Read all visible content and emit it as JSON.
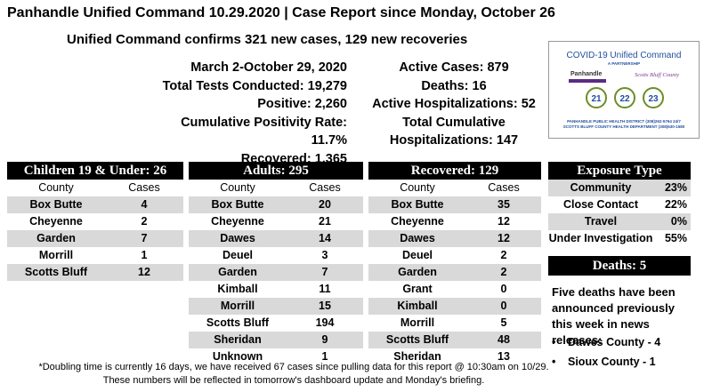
{
  "header": {
    "title": "Panhandle Unified Command 10.29.2020 | Case Report since Monday, October 26",
    "subtitle": "Unified Command confirms 321 new cases, 129 new recoveries"
  },
  "stats_left": [
    "March 2-October 29, 2020",
    "Total Tests Conducted: 19,279",
    "Positive: 2,260",
    "Cumulative Positivity Rate: 11.7%",
    "Recovered: 1,365"
  ],
  "stats_right": [
    "Active Cases: 879",
    "Deaths: 16",
    "Active Hospitalizations: 52",
    "Total Cumulative",
    "Hospitalizations: 147"
  ],
  "logo": {
    "title": "COVID-19 Unified Command",
    "subtitle": "A PARTNERSHIP",
    "phd": "Panhandle",
    "scb": "Scotts Bluff County",
    "numbers": [
      "21",
      "22",
      "23"
    ],
    "footer_1": "PANHANDLE PUBLIC HEALTH DISTRICT (308)262-5764 24/7",
    "footer_2": "SCOTTS BLUFF COUNTY HEALTH DEPARTMENT (308)630-1580"
  },
  "children": {
    "heading": "Children 19 & Under: 26",
    "col_county": "County",
    "col_cases": "Cases",
    "rows": [
      {
        "county": "Box Butte",
        "cases": "4"
      },
      {
        "county": "Cheyenne",
        "cases": "2"
      },
      {
        "county": "Garden",
        "cases": "7"
      },
      {
        "county": "Morrill",
        "cases": "1"
      },
      {
        "county": "Scotts Bluff",
        "cases": "12"
      }
    ]
  },
  "adults": {
    "heading": "Adults: 295",
    "col_county": "County",
    "col_cases": "Cases",
    "rows": [
      {
        "county": "Box Butte",
        "cases": "20"
      },
      {
        "county": "Cheyenne",
        "cases": "21"
      },
      {
        "county": "Dawes",
        "cases": "14"
      },
      {
        "county": "Deuel",
        "cases": "3"
      },
      {
        "county": "Garden",
        "cases": "7"
      },
      {
        "county": "Kimball",
        "cases": "11"
      },
      {
        "county": "Morrill",
        "cases": "15"
      },
      {
        "county": "Scotts Bluff",
        "cases": "194"
      },
      {
        "county": "Sheridan",
        "cases": "9"
      },
      {
        "county": "Unknown",
        "cases": "1"
      }
    ]
  },
  "recovered": {
    "heading": "Recovered: 129",
    "col_county": "County",
    "col_cases": "Cases",
    "rows": [
      {
        "county": "Box Butte",
        "cases": "35"
      },
      {
        "county": "Cheyenne",
        "cases": "12"
      },
      {
        "county": "Dawes",
        "cases": "12"
      },
      {
        "county": "Deuel",
        "cases": "2"
      },
      {
        "county": "Garden",
        "cases": "2"
      },
      {
        "county": "Grant",
        "cases": "0"
      },
      {
        "county": "Kimball",
        "cases": "0"
      },
      {
        "county": "Morrill",
        "cases": "5"
      },
      {
        "county": "Scotts Bluff",
        "cases": "48"
      },
      {
        "county": "Sheridan",
        "cases": "13"
      }
    ]
  },
  "exposure": {
    "heading": "Exposure Type",
    "rows": [
      {
        "type": "Community",
        "pct": "23%"
      },
      {
        "type": "Close Contact",
        "pct": "22%"
      },
      {
        "type": "Travel",
        "pct": "0%"
      },
      {
        "type": "Under Investigation",
        "pct": "55%"
      }
    ]
  },
  "deaths": {
    "heading": "Deaths: 5",
    "text": "Five deaths have been announced previously this week in news releases:",
    "items": [
      "Dawes County - 4",
      "Sioux County - 1"
    ]
  },
  "footnote": {
    "line1": "*Doubling time is currently 16 days, we have received 67 cases since pulling data for this report @ 10:30am on 10/29.",
    "line2": "These numbers will be reflected in tomorrow's dashboard update and Monday's briefing."
  },
  "colors": {
    "header_bg": "#000000",
    "row_shade": "#d9d9d9",
    "logo_blue": "#1f4e9c",
    "logo_purple": "#5a2d82"
  }
}
